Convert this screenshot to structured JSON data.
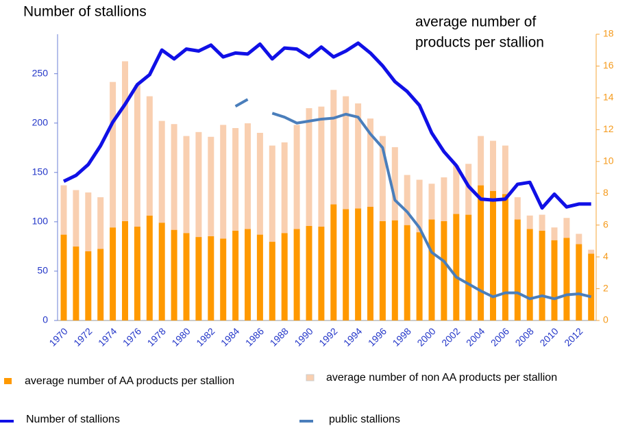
{
  "chart_data": {
    "type": "bar_line",
    "y_label": "Number of stallions",
    "y2_label": [
      "average number of",
      "products per stallion"
    ],
    "categories": [
      "1970",
      null,
      "1972",
      null,
      "1974",
      null,
      "1976",
      null,
      "1978",
      null,
      "1980",
      null,
      "1982",
      null,
      "1984",
      null,
      "1986",
      null,
      "1988",
      null,
      "1990",
      null,
      "1992",
      null,
      "1994",
      null,
      "1996",
      null,
      "1998",
      null,
      "2000",
      null,
      "2002",
      null,
      "2004",
      null,
      "2006",
      null,
      "2008",
      null,
      "2010",
      null,
      "2012",
      null
    ],
    "ylim": [
      0,
      290
    ],
    "yticks": [
      0,
      50,
      100,
      150,
      200,
      250
    ],
    "y2lim": [
      0,
      18
    ],
    "y2ticks": [
      0,
      2,
      4,
      6,
      8,
      10,
      12,
      14,
      16,
      18
    ],
    "series": [
      {
        "name": "average number of AA products per stallion",
        "kind": "bar",
        "axis": "y2",
        "color": "#ff9900",
        "values": [
          5.4,
          4.65,
          4.35,
          4.5,
          5.85,
          6.25,
          5.9,
          6.6,
          6.15,
          5.7,
          5.5,
          5.25,
          5.3,
          5.15,
          5.65,
          5.75,
          5.4,
          4.95,
          5.5,
          5.75,
          5.95,
          5.9,
          7.3,
          7.0,
          7.05,
          7.15,
          6.25,
          6.3,
          6.0,
          5.55,
          6.35,
          6.25,
          6.7,
          6.65,
          8.5,
          8.15,
          7.95,
          6.35,
          5.75,
          5.65,
          5.05,
          5.2,
          4.8,
          4.2
        ]
      },
      {
        "name": "average number of non AA products per stallion",
        "kind": "bar",
        "axis": "y2",
        "color": "#f9cfb0",
        "values": [
          3.1,
          3.55,
          3.7,
          3.25,
          9.15,
          10.05,
          8.9,
          7.5,
          6.4,
          6.65,
          6.1,
          6.6,
          6.25,
          7.15,
          6.45,
          6.65,
          6.4,
          6.05,
          5.7,
          6.55,
          7.4,
          7.55,
          7.2,
          7.1,
          6.6,
          5.55,
          5.35,
          4.6,
          3.15,
          3.3,
          2.25,
          2.75,
          3.05,
          3.2,
          3.1,
          3.15,
          3.05,
          1.4,
          0.85,
          1.0,
          0.8,
          1.25,
          0.65,
          0.25
        ]
      },
      {
        "name": "Number of stallions",
        "kind": "line",
        "axis": "y",
        "color": "#1010e6",
        "values": [
          141,
          147,
          158,
          177,
          201,
          219,
          239,
          249,
          274,
          265,
          275,
          273,
          279,
          267,
          271,
          270,
          280,
          265,
          276,
          275,
          267,
          277,
          267,
          273,
          281,
          271,
          258,
          242,
          232,
          218,
          190,
          171,
          157,
          136,
          123,
          122,
          123,
          138,
          140,
          114,
          128,
          115,
          118,
          118
        ]
      },
      {
        "name": "public stallions",
        "kind": "line",
        "axis": "y",
        "color": "#4a7ebb",
        "values": [
          null,
          null,
          null,
          null,
          null,
          null,
          null,
          null,
          null,
          null,
          null,
          null,
          null,
          null,
          217,
          224,
          null,
          210,
          206,
          200,
          202,
          204,
          205,
          209,
          206,
          189,
          175,
          122,
          110,
          94,
          69,
          60,
          44,
          37,
          30,
          24,
          28,
          28,
          22,
          25,
          22,
          26,
          27,
          24
        ]
      }
    ]
  }
}
